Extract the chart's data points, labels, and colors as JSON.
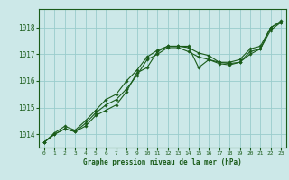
{
  "background_color": "#cce8e8",
  "grid_color": "#99cccc",
  "line_color": "#1a5c1a",
  "marker_color": "#1a5c1a",
  "xlabel": "Graphe pression niveau de la mer (hPa)",
  "ylim": [
    1013.5,
    1018.7
  ],
  "yticks": [
    1014,
    1015,
    1016,
    1017,
    1018
  ],
  "xlim": [
    -0.5,
    23.5
  ],
  "xticks": [
    0,
    1,
    2,
    3,
    4,
    5,
    6,
    7,
    8,
    9,
    10,
    11,
    12,
    13,
    14,
    15,
    16,
    17,
    18,
    19,
    20,
    21,
    22,
    23
  ],
  "series1_y": [
    1013.7,
    1014.0,
    1014.2,
    1014.1,
    1014.3,
    1014.7,
    1014.9,
    1015.1,
    1015.6,
    1016.3,
    1016.5,
    1017.1,
    1017.3,
    1017.3,
    1017.3,
    1016.5,
    1016.8,
    1016.7,
    1016.65,
    1016.7,
    1017.0,
    1017.2,
    1017.9,
    1018.2
  ],
  "series2_y": [
    1013.7,
    1014.0,
    1014.2,
    1014.1,
    1014.4,
    1014.8,
    1015.1,
    1015.3,
    1015.7,
    1016.2,
    1016.8,
    1017.0,
    1017.25,
    1017.25,
    1017.1,
    1016.9,
    1016.8,
    1016.65,
    1016.6,
    1016.7,
    1017.1,
    1017.2,
    1018.0,
    1018.2
  ],
  "series3_y": [
    1013.7,
    1014.05,
    1014.3,
    1014.15,
    1014.5,
    1014.9,
    1015.3,
    1015.5,
    1016.0,
    1016.4,
    1016.9,
    1017.15,
    1017.3,
    1017.3,
    1017.25,
    1017.05,
    1016.95,
    1016.7,
    1016.7,
    1016.8,
    1017.2,
    1017.3,
    1018.0,
    1018.25
  ],
  "lw": 0.8,
  "ms": 1.8
}
